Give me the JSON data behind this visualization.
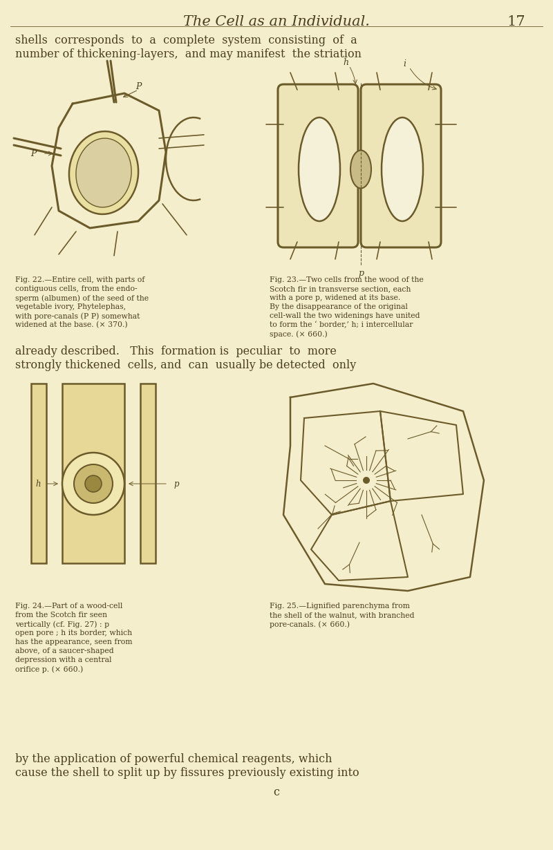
{
  "bg_color": "#f5eecc",
  "page_color": "#f0e8b8",
  "title": "The Cell as an Individual.",
  "page_number": "17",
  "top_text_line1": "shells  corresponds  to  a  complete  system  consisting  of  a",
  "top_text_line2": "number of thickening-layers,  and may manifest  the striation",
  "mid_text_line1": "already described.   This  formation is  peculiar  to  more",
  "mid_text_line2": "strongly thickened  cells, and  can  usually be detected  only",
  "bottom_text_line1": "by the application of powerful chemical reagents, which",
  "bottom_text_line2": "cause the shell to split up by fissures previously existing into",
  "bottom_text_line3": "c",
  "fig22_caption_lines": [
    "Fig. 22.—Entire cell, with parts of",
    "contiguous cells, from the endo-",
    "sperm (albumen) of the seed of the",
    "vegetable ivory, Phytelephas,",
    "with pore-canals (P P) somewhat",
    "widened at the base. (× 370.)"
  ],
  "fig23_caption_lines": [
    "Fig. 23.—Two cells from the wood of the",
    "Scotch fir in transverse section, each",
    "with a pore p, widened at its base.",
    "By the disappearance of the original",
    "cell-wall the two widenings have united",
    "to form the ‘ border,’ h; i intercellular",
    "space. (× 660.)"
  ],
  "fig24_caption_lines": [
    "Fig. 24.—Part of a wood-cell",
    "from the Scotch fir seen",
    "vertically (cf. Fig. 27) : p",
    "open pore ; h its border, which",
    "has the appearance, seen from",
    "above, of a saucer-shaped",
    "depression with a central",
    "orifice p. (× 660.)"
  ],
  "fig25_caption_lines": [
    "Fig. 25.—Lignified parenchyma from",
    "the shell of the walnut, with branched",
    "pore-canals. (× 660.)"
  ],
  "text_color": "#4a3e1e",
  "line_color": "#6b5a2a"
}
